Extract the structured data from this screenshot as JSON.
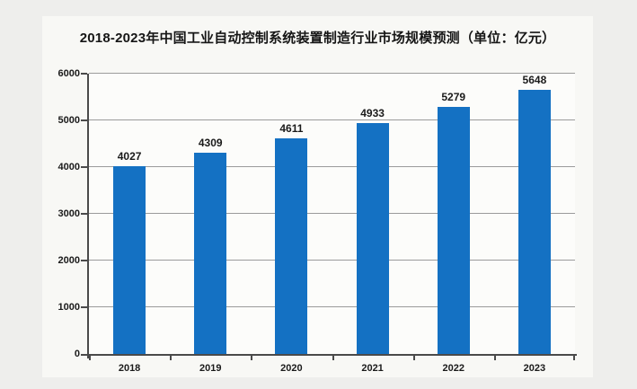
{
  "page": {
    "background_color": "#eeeeec",
    "panel_background_color": "#f8f8f5"
  },
  "title": "2018-2023年中国工业自动控制系统装置制造行业市场规模预测（单位：亿元）",
  "chart_data": {
    "type": "bar",
    "title": "2018-2023年中国工业自动控制系统装置制造行业市场规模预测（单位：亿元）",
    "categories": [
      "2018",
      "2019",
      "2020",
      "2021",
      "2022",
      "2023"
    ],
    "values": [
      4027,
      4309,
      4611,
      4933,
      5279,
      5648
    ],
    "value_labels_shown": true,
    "unit": "亿元",
    "xlabel": "",
    "ylabel": "",
    "ylim": [
      0,
      6000
    ],
    "yticks": [
      0,
      1000,
      2000,
      3000,
      4000,
      5000,
      6000
    ],
    "grid": true,
    "legend_position": "none",
    "bar_color": "#1471c3",
    "gridline_color": "#9b9b9b",
    "axis_color": "#4a4a4a",
    "label_text_color": "#1a1a1a"
  }
}
